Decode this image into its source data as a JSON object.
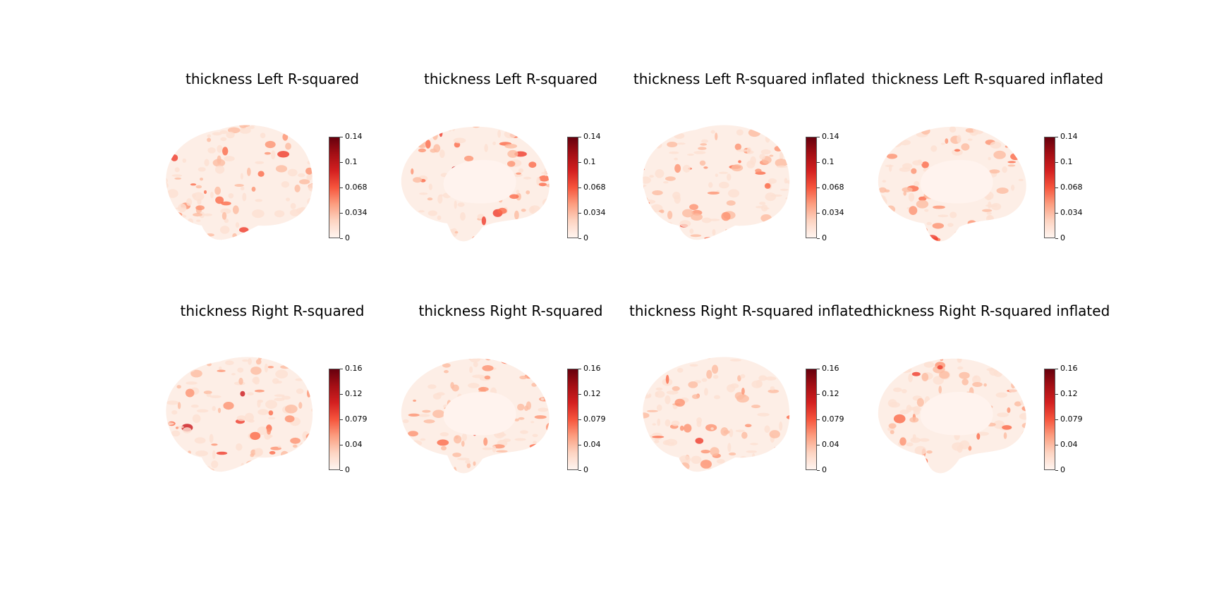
{
  "figure": {
    "panels": [
      {
        "title": "thickness Left R-squared",
        "view": "lateral",
        "surface": "pial",
        "colorbar_ticks": [
          "0.14",
          "0.1",
          "0.068",
          "0.034",
          "0"
        ]
      },
      {
        "title": "thickness Left R-squared",
        "view": "medial",
        "surface": "pial",
        "colorbar_ticks": [
          "0.14",
          "0.1",
          "0.068",
          "0.034",
          "0"
        ]
      },
      {
        "title": "thickness Left R-squared inflated",
        "view": "lateral",
        "surface": "inflated",
        "colorbar_ticks": [
          "0.14",
          "0.1",
          "0.068",
          "0.034",
          "0"
        ]
      },
      {
        "title": "thickness Left R-squared inflated",
        "view": "medial",
        "surface": "inflated",
        "colorbar_ticks": [
          "0.14",
          "0.1",
          "0.068",
          "0.034",
          "0"
        ]
      },
      {
        "title": "thickness Right R-squared",
        "view": "lateral",
        "surface": "pial",
        "colorbar_ticks": [
          "0.16",
          "0.12",
          "0.079",
          "0.04",
          "0"
        ]
      },
      {
        "title": "thickness Right R-squared",
        "view": "medial",
        "surface": "pial",
        "colorbar_ticks": [
          "0.16",
          "0.12",
          "0.079",
          "0.04",
          "0"
        ]
      },
      {
        "title": "thickness Right R-squared inflated",
        "view": "lateral",
        "surface": "inflated",
        "colorbar_ticks": [
          "0.16",
          "0.12",
          "0.079",
          "0.04",
          "0"
        ]
      },
      {
        "title": "thickness Right R-squared inflated",
        "view": "medial",
        "surface": "inflated",
        "colorbar_ticks": [
          "0.16",
          "0.12",
          "0.079",
          "0.04",
          "0"
        ]
      }
    ],
    "colormap": "Reds",
    "colors": {
      "low": "#fff5f0",
      "mid": "#fc9e80",
      "high": "#67000d",
      "brain_base": "#fdeee6"
    }
  }
}
